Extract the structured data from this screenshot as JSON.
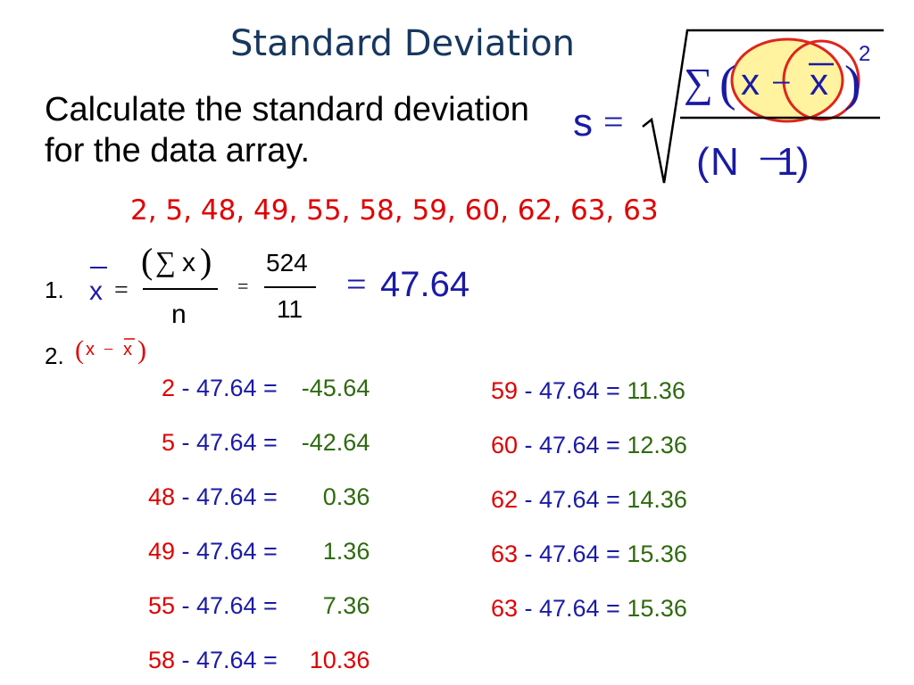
{
  "title": "Standard Deviation",
  "instruction": "Calculate the standard deviation for the data array.",
  "data_array": "2, 5, 48, 49, 55, 58, 59, 60, 62, 63, 63",
  "formula": {
    "lhs": "s",
    "equals": "=",
    "sigma": "∑",
    "x": "x",
    "minus": "−",
    "xbar": "x",
    "exponent": "2",
    "n": "N",
    "one": "1"
  },
  "step1": {
    "label": "1.",
    "xbar": "x",
    "equals": "=",
    "num_sigma": "∑",
    "num_x": "x",
    "den": "n",
    "eq2": "=",
    "sum": "524",
    "count": "11",
    "eq3": "=",
    "mean": "47.64"
  },
  "step2": {
    "label": "2.",
    "expr_x": "x",
    "expr_minus": "−",
    "expr_xbar": "x"
  },
  "left_rows": [
    {
      "value": "2",
      "op": " - 47.64 = ",
      "result": "-45.64",
      "result_color": "green"
    },
    {
      "value": "5",
      "op": " - 47.64 = ",
      "result": "-42.64",
      "result_color": "green"
    },
    {
      "value": "48",
      "op": " - 47.64 = ",
      "result": "0.36",
      "result_color": "green"
    },
    {
      "value": "49",
      "op": " - 47.64 = ",
      "result": "1.36",
      "result_color": "green"
    },
    {
      "value": "55",
      "op": " - 47.64 = ",
      "result": "7.36",
      "result_color": "green"
    },
    {
      "value": "58",
      "op": " - 47.64 = ",
      "result": "10.36",
      "result_color": "red"
    }
  ],
  "right_rows": [
    {
      "value": "59",
      "op": " - 47.64 = ",
      "result": "11.36",
      "result_color": "green"
    },
    {
      "value": "60",
      "op": " - 47.64 = ",
      "result": "12.36",
      "result_color": "green"
    },
    {
      "value": "62",
      "op": " - 47.64 = ",
      "result": "14.36",
      "result_color": "green"
    },
    {
      "value": "63",
      "op": " - 47.64 = ",
      "result": "15.36",
      "result_color": "green"
    },
    {
      "value": "63",
      "op": " - 47.64 = ",
      "result": "15.36",
      "result_color": "green"
    }
  ],
  "colors": {
    "title": "#17375e",
    "value": "#e00000",
    "operator": "#1a1aa6",
    "result": "#2e6a0e",
    "highlight_fill": "#fff3a0",
    "highlight_stroke": "#e0241b"
  }
}
